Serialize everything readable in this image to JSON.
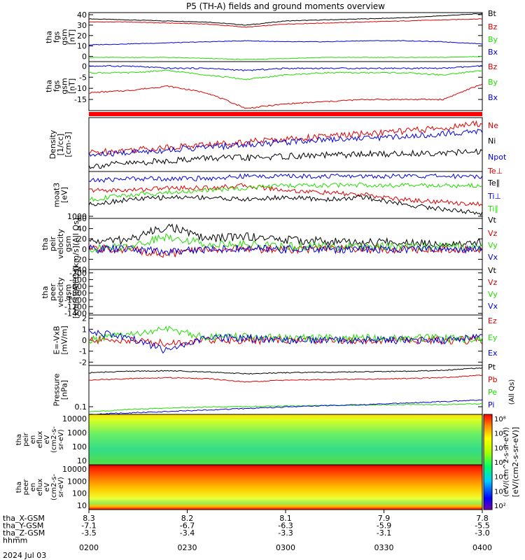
{
  "title": "P5 (TH-A) fields and ground moments overview",
  "colors": {
    "black": "#000000",
    "red": "#dd0000",
    "green": "#22dd00",
    "blue": "#0000dd"
  },
  "chart_data": {
    "type": "line",
    "x_time_ticks": [
      "0200",
      "0230",
      "0300",
      "0330",
      "0400"
    ],
    "date": "2024 Jul 03",
    "ephemeris": {
      "labels": [
        "tha_X-GSM",
        "tha_Y-GSM",
        "tha_Z-GSM",
        "hhmm"
      ],
      "rows": [
        [
          "8.3",
          "8.2",
          "8.1",
          "7.9",
          "7.8"
        ],
        [
          "-7.1",
          "-6.7",
          "-6.3",
          "-5.9",
          "-5.5"
        ],
        [
          "-3.5",
          "-3.4",
          "-3.3",
          "-3.1",
          "-3.0"
        ]
      ]
    },
    "panels": [
      {
        "id": "p1",
        "ylabel": [
          "tha",
          "fgs",
          "gsm",
          "[nT]"
        ],
        "yticks": [
          "40",
          "30",
          "20",
          "10",
          "0"
        ],
        "ylim": [
          -5,
          42
        ],
        "series": [
          {
            "name": "Bt",
            "color": "black",
            "values": [
              36,
              35,
              34,
              33,
              30,
              34,
              35,
              36,
              37,
              39,
              41
            ]
          },
          {
            "name": "Bz",
            "color": "red",
            "values": [
              33,
              33,
              32,
              31,
              28,
              31,
              32,
              33,
              34,
              35,
              36
            ]
          },
          {
            "name": "By",
            "color": "green",
            "values": [
              -1,
              -1,
              -1,
              -2,
              -3,
              -2,
              -1,
              -1,
              -1,
              -1,
              0
            ]
          },
          {
            "name": "Bx",
            "color": "blue",
            "values": [
              11,
              12,
              13,
              14,
              15,
              14,
              14,
              15,
              15,
              14,
              12
            ]
          }
        ]
      },
      {
        "id": "p2",
        "ylabel": [
          "tha",
          "fgs",
          "gsm",
          "[nT]"
        ],
        "yticks": [
          "0",
          "-5",
          "-10",
          "-15"
        ],
        "ylim": [
          -20,
          2
        ],
        "series": [
          {
            "name": "Bz",
            "color": "red",
            "values": [
              -12,
              -11,
              -9,
              -12,
              -19,
              -17,
              -16,
              -15,
              -15,
              -15,
              -8
            ]
          },
          {
            "name": "By",
            "color": "green",
            "values": [
              -3,
              -3,
              -2,
              -4,
              -6,
              -4,
              -3,
              -3,
              -3,
              -4,
              -2
            ]
          },
          {
            "name": "Bx",
            "color": "blue",
            "values": [
              0,
              0,
              -1,
              -1,
              -2,
              -1,
              -1,
              -1,
              -1,
              -1,
              0
            ]
          }
        ]
      },
      {
        "id": "p3",
        "ylabel": [
          "Density",
          "[1/cc]",
          "[cm-3]"
        ],
        "yticks": [],
        "ylim": [
          0,
          10
        ],
        "series": [
          {
            "name": "Ne",
            "color": "red",
            "values": [
              3.5,
              4,
              4.5,
              5,
              5.5,
              6,
              6.5,
              7,
              7.5,
              8,
              9
            ]
          },
          {
            "name": "Ni",
            "color": "black",
            "values": [
              1,
              1.5,
              2,
              2.5,
              2.5,
              2.8,
              3,
              3.2,
              3.3,
              3.5,
              3.6
            ]
          },
          {
            "name": "Npot",
            "color": "blue",
            "values": [
              3,
              3.5,
              4,
              4.5,
              5,
              5.5,
              6,
              6.2,
              6.5,
              7,
              7.5
            ]
          }
        ]
      },
      {
        "id": "p4",
        "ylabel": [
          "moat3",
          "[eV]"
        ],
        "yticks": [
          "1000"
        ],
        "ylim": [
          0,
          10
        ],
        "series": [
          {
            "name": "Te⊥",
            "color": "red",
            "values": [
              6,
              6,
              6.5,
              6.5,
              7,
              6,
              5.5,
              5,
              4,
              3.5,
              3
            ]
          },
          {
            "name": "Te∥",
            "color": "black",
            "values": [
              3,
              4,
              4.5,
              4.5,
              4,
              4.5,
              4,
              4.5,
              3,
              2,
              1
            ]
          },
          {
            "name": "Ti⊥",
            "color": "blue",
            "values": [
              8,
              8.5,
              8.5,
              8.5,
              9,
              9,
              9,
              9,
              9,
              9,
              9
            ]
          },
          {
            "name": "Ti∥",
            "color": "green",
            "values": [
              4,
              5,
              5.5,
              6,
              6.5,
              7,
              7,
              7.2,
              7,
              7,
              7
            ]
          }
        ]
      },
      {
        "id": "p5",
        "ylabel": [
          "tha",
          "peir",
          "velocity",
          "gsm",
          "[km/s](All Qs)"
        ],
        "yticks": [
          "60",
          "40",
          "20",
          "0",
          "-20",
          "-40"
        ],
        "ylim": [
          -40,
          60
        ],
        "series": [
          {
            "name": "Vt",
            "color": "black",
            "values": [
              15,
              18,
              45,
              20,
              25,
              18,
              15,
              12,
              14,
              12,
              12
            ]
          },
          {
            "name": "Vz",
            "color": "red",
            "values": [
              0,
              0,
              -10,
              0,
              0,
              0,
              0,
              0,
              0,
              0,
              0
            ]
          },
          {
            "name": "Vy",
            "color": "green",
            "values": [
              0,
              5,
              25,
              10,
              10,
              5,
              5,
              5,
              5,
              5,
              5
            ]
          },
          {
            "name": "Vx",
            "color": "blue",
            "values": [
              0,
              0,
              -5,
              0,
              0,
              0,
              0,
              0,
              0,
              0,
              0
            ]
          }
        ]
      },
      {
        "id": "p6",
        "ylabel": [
          "tha",
          "peer",
          "velocity",
          "gsm",
          "[km/s](All Qs)"
        ],
        "yticks": [
          "-200",
          "-400",
          "-600",
          "-800",
          "-1000",
          "-1200",
          "-1400"
        ],
        "ylim": [
          -1450,
          -100
        ],
        "series": [
          {
            "name": "Vt",
            "color": "black",
            "values": []
          },
          {
            "name": "Vz",
            "color": "red",
            "values": []
          },
          {
            "name": "Vy",
            "color": "green",
            "values": []
          },
          {
            "name": "Vx",
            "color": "blue",
            "values": []
          }
        ]
      },
      {
        "id": "p7",
        "ylabel": [
          "E=-VxB",
          "[mV/m]"
        ],
        "yticks": [
          "2",
          "1",
          "0",
          "-1",
          "-2"
        ],
        "ylim": [
          -2.3,
          2.3
        ],
        "series": [
          {
            "name": "Ez",
            "color": "red",
            "values": [
              0,
              0,
              -0.3,
              0,
              0,
              0,
              0,
              0,
              0,
              0,
              0
            ]
          },
          {
            "name": "Ey",
            "color": "green",
            "values": [
              0,
              0.5,
              1,
              0.3,
              0.3,
              0.2,
              0.2,
              0.2,
              0.2,
              0.2,
              0
            ]
          },
          {
            "name": "Ex",
            "color": "blue",
            "values": [
              0.8,
              0.2,
              -1,
              0.2,
              0.2,
              0,
              0,
              0,
              0,
              0,
              0.3
            ]
          }
        ]
      },
      {
        "id": "p8",
        "ylabel": [
          "Pressure",
          "[nPa]"
        ],
        "yticks": [
          "0.1"
        ],
        "ylim": [
          0,
          10
        ],
        "series": [
          {
            "name": "Pt",
            "color": "black",
            "values": [
              8.5,
              8.8,
              8.9,
              8.7,
              8.3,
              8.5,
              8.6,
              8.7,
              8.8,
              9,
              9.5
            ]
          },
          {
            "name": "Pb",
            "color": "red",
            "values": [
              7,
              7.3,
              7.5,
              7.3,
              6.6,
              7,
              7.1,
              7.2,
              7.3,
              7.5,
              8
            ]
          },
          {
            "name": "Pe",
            "color": "green",
            "values": [
              0.5,
              1,
              1.3,
              1.5,
              1.6,
              1.7,
              1.8,
              1.9,
              2,
              2,
              2.2
            ]
          },
          {
            "name": "Pi",
            "color": "blue",
            "values": [
              0,
              0.3,
              0.6,
              0.9,
              1.2,
              1.5,
              1.8,
              2,
              2.3,
              2.6,
              3
            ]
          }
        ]
      }
    ],
    "spectrograms": [
      {
        "id": "s1",
        "ylabel": [
          "tha",
          "peir",
          "en",
          "eflux",
          "eV",
          "(cm2-s-",
          "sr-eV)"
        ],
        "yticks": [
          "10000",
          "1000",
          "100",
          "10"
        ]
      },
      {
        "id": "s2",
        "ylabel": [
          "tha",
          "peer",
          "en",
          "eflux",
          "eV",
          "(cm2-s-",
          "sr-eV)"
        ],
        "yticks": [
          "10000",
          "1000",
          "100",
          "10"
        ]
      }
    ],
    "colorbar": {
      "label": "[eV/(cm2-s-sr-eV)]",
      "sublabel": "(eV/(cm^2-s-sr-eV))",
      "ticks": [
        "10⁸",
        "10⁷",
        "10⁶",
        "10⁵",
        "10⁴",
        "10³",
        "10²"
      ]
    },
    "pressure_note": "(All Qs)"
  }
}
